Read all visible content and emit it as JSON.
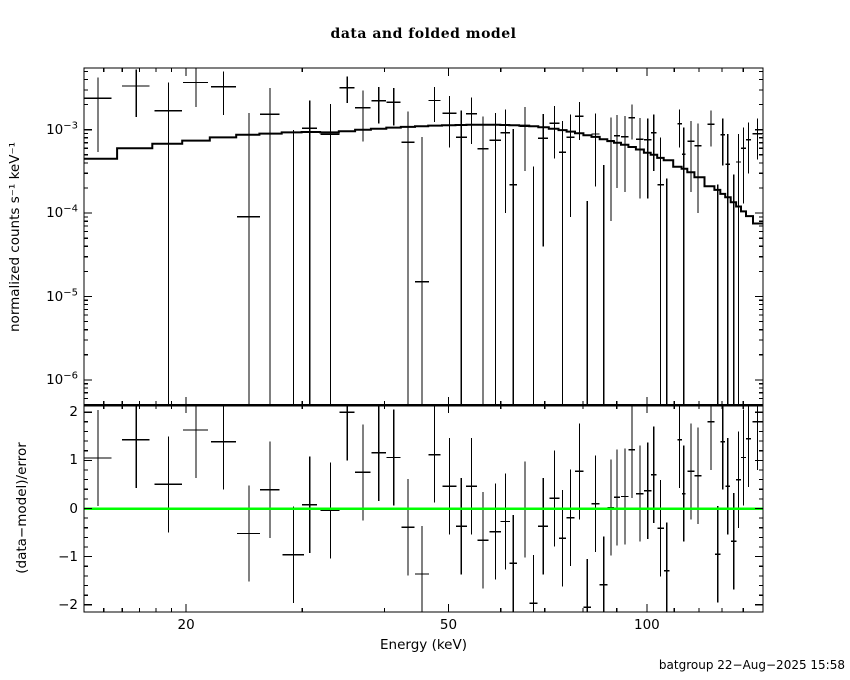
{
  "title": "data and folded model",
  "footer": {
    "stamp": "batgroup 22−Aug−2025 15:58"
  },
  "colors": {
    "background": "#ffffff",
    "foreground": "#000000",
    "model_line": "#000000",
    "data_points": "#000000",
    "zero_line": "#00ff00",
    "stamp_text": "#000000"
  },
  "chart_data": {
    "type": "scatter",
    "title": "data and folded model",
    "xlabel": "Energy (keV)",
    "xscale": "log",
    "xlim": [
      14,
      150
    ],
    "xticks_labeled": [
      {
        "v": 20,
        "label": "20"
      },
      {
        "v": 50,
        "label": "50"
      },
      {
        "v": 100,
        "label": "100"
      }
    ],
    "xticks_minor": [
      15,
      16,
      17,
      18,
      19,
      30,
      40,
      60,
      70,
      80,
      90,
      110,
      120,
      130,
      140
    ],
    "grid": false,
    "legend": "none",
    "panels": [
      {
        "name": "data_and_folded_model",
        "ylabel": "normalized counts s⁻¹ keV⁻¹",
        "yscale": "log",
        "ylim": [
          5e-07,
          0.0055
        ],
        "yticks_labeled": [
          {
            "v": 0.001,
            "base": "10",
            "exp": "−3"
          },
          {
            "v": 0.0001,
            "base": "10",
            "exp": "−4"
          },
          {
            "v": 1e-05,
            "base": "10",
            "exp": "−5"
          },
          {
            "v": 1e-06,
            "base": "10",
            "exp": "−6"
          }
        ],
        "content": "data crosses with error bars and stepped folded model line"
      },
      {
        "name": "residuals",
        "ylabel": "(data−model)/error",
        "yscale": "linear",
        "ylim": [
          -2.15,
          2.15
        ],
        "yticks_labeled": [
          {
            "v": 2,
            "label": "2"
          },
          {
            "v": 1,
            "label": "1"
          },
          {
            "v": 0,
            "label": "0"
          },
          {
            "v": -1,
            "label": "−1"
          },
          {
            "v": -2,
            "label": "−2"
          }
        ],
        "yticks_minor_step": 0.2,
        "zero_line_value": 0,
        "residual_error_halfwidth": 1
      }
    ],
    "bins_format": [
      "E_center_keV",
      "E_halfwidth_keV",
      "model_x1e-3",
      "data_x1e-3",
      "error_x1e-3",
      "residual_sigma"
    ],
    "rate_unit_scale": 0.001,
    "bins": [
      [
        14.7,
        0.7,
        0.45,
        2.39,
        1.85,
        1.05
      ],
      [
        16.8,
        0.8,
        0.6,
        3.35,
        1.92,
        1.43
      ],
      [
        18.8,
        0.9,
        0.68,
        1.68,
        2.0,
        0.5
      ],
      [
        20.7,
        0.9,
        0.74,
        3.69,
        1.81,
        1.63
      ],
      [
        22.8,
        1.0,
        0.81,
        3.26,
        1.76,
        1.39
      ],
      [
        24.9,
        1.0,
        0.87,
        0.09,
        1.49,
        -0.52
      ],
      [
        26.8,
        0.9,
        0.9,
        1.54,
        1.64,
        0.39
      ],
      [
        29.1,
        1.1,
        0.93,
        -0.51,
        1.5,
        -0.96
      ],
      [
        30.8,
        0.8,
        0.94,
        1.04,
        1.2,
        0.08
      ],
      [
        33.1,
        1.1,
        0.93,
        0.88,
        1.15,
        -0.04
      ],
      [
        35.1,
        0.9,
        0.96,
        3.2,
        1.12,
        2.0
      ],
      [
        37.1,
        1.0,
        1.0,
        1.84,
        1.12,
        0.75
      ],
      [
        39.2,
        1.0,
        1.03,
        2.22,
        1.03,
        1.16
      ],
      [
        41.3,
        1.0,
        1.06,
        2.14,
        1.02,
        1.06
      ],
      [
        43.4,
        1.0,
        1.08,
        0.71,
        0.95,
        -0.39
      ],
      [
        45.6,
        1.1,
        1.1,
        0.015,
        0.8,
        -1.36
      ],
      [
        47.6,
        1.0,
        1.12,
        2.24,
        1.0,
        1.12
      ],
      [
        50.2,
        1.2,
        1.13,
        1.58,
        0.97,
        0.46
      ],
      [
        52.3,
        1.0,
        1.14,
        0.81,
        0.9,
        -0.37
      ],
      [
        54.2,
        1.0,
        1.15,
        1.55,
        0.88,
        0.46
      ],
      [
        56.4,
        1.1,
        1.15,
        0.59,
        0.85,
        -0.66
      ],
      [
        58.9,
        1.2,
        1.15,
        0.75,
        0.83,
        -0.48
      ],
      [
        61.0,
        1.0,
        1.14,
        0.92,
        0.82,
        -0.27
      ],
      [
        62.7,
        0.8,
        1.13,
        0.22,
        0.8,
        -1.14
      ],
      [
        65.3,
        1.2,
        1.12,
        1.1,
        0.78,
        -0.02
      ],
      [
        67.3,
        0.9,
        1.1,
        -0.4,
        0.76,
        -1.97
      ],
      [
        69.6,
        1.2,
        1.07,
        0.79,
        0.75,
        -0.37
      ],
      [
        72.4,
        1.3,
        1.03,
        1.19,
        0.74,
        0.21
      ],
      [
        74.5,
        0.9,
        0.99,
        0.54,
        0.73,
        -0.62
      ],
      [
        76.6,
        1.1,
        0.95,
        0.81,
        0.72,
        -0.19
      ],
      [
        79.0,
        1.2,
        0.91,
        1.45,
        0.7,
        0.77
      ],
      [
        81.2,
        1.1,
        0.86,
        -0.55,
        0.69,
        -2.05
      ],
      [
        83.6,
        1.2,
        0.82,
        0.89,
        0.68,
        0.1
      ],
      [
        86.0,
        1.2,
        0.77,
        -0.29,
        0.67,
        -1.58
      ],
      [
        88.2,
        1.0,
        0.73,
        0.74,
        0.66,
        0.02
      ],
      [
        90.1,
        1.0,
        0.7,
        0.85,
        0.65,
        0.23
      ],
      [
        92.6,
        1.2,
        0.66,
        0.82,
        0.64,
        0.25
      ],
      [
        94.9,
        1.1,
        0.62,
        1.39,
        0.63,
        1.22
      ],
      [
        97.6,
        1.3,
        0.58,
        0.77,
        0.62,
        0.31
      ],
      [
        100.3,
        1.3,
        0.53,
        0.76,
        0.61,
        0.37
      ],
      [
        102.4,
        1.0,
        0.5,
        0.92,
        0.6,
        0.7
      ],
      [
        104.9,
        1.2,
        0.46,
        0.22,
        0.59,
        -0.41
      ],
      [
        107.2,
        1.1,
        0.43,
        -0.32,
        0.58,
        -1.29
      ],
      [
        112.1,
        0.9,
        0.36,
        1.18,
        0.57,
        1.43
      ],
      [
        113.7,
        0.7,
        0.34,
        0.51,
        0.56,
        0.31
      ],
      [
        116.6,
        1.4,
        0.31,
        0.73,
        0.55,
        0.77
      ],
      [
        119.5,
        1.4,
        0.27,
        0.64,
        0.54,
        0.68
      ],
      [
        125.1,
        1.5,
        0.21,
        1.16,
        0.53,
        1.8
      ],
      [
        128.1,
        1.3,
        0.19,
        -0.3,
        0.52,
        -0.95
      ],
      [
        130.3,
        1.0,
        0.17,
        0.87,
        0.5,
        1.39
      ],
      [
        132.6,
        1.1,
        0.155,
        0.385,
        0.5,
        0.46
      ],
      [
        135.4,
        1.3,
        0.135,
        -0.2,
        0.49,
        -0.68
      ],
      [
        137.7,
        1.1,
        0.12,
        0.41,
        0.48,
        0.6
      ],
      [
        140.1,
        1.2,
        0.105,
        0.6,
        0.47,
        1.06
      ],
      [
        142.6,
        1.2,
        0.092,
        0.76,
        0.46,
        1.45
      ],
      [
        147.1,
        2.4,
        0.075,
        0.9,
        0.46,
        1.8
      ]
    ]
  }
}
